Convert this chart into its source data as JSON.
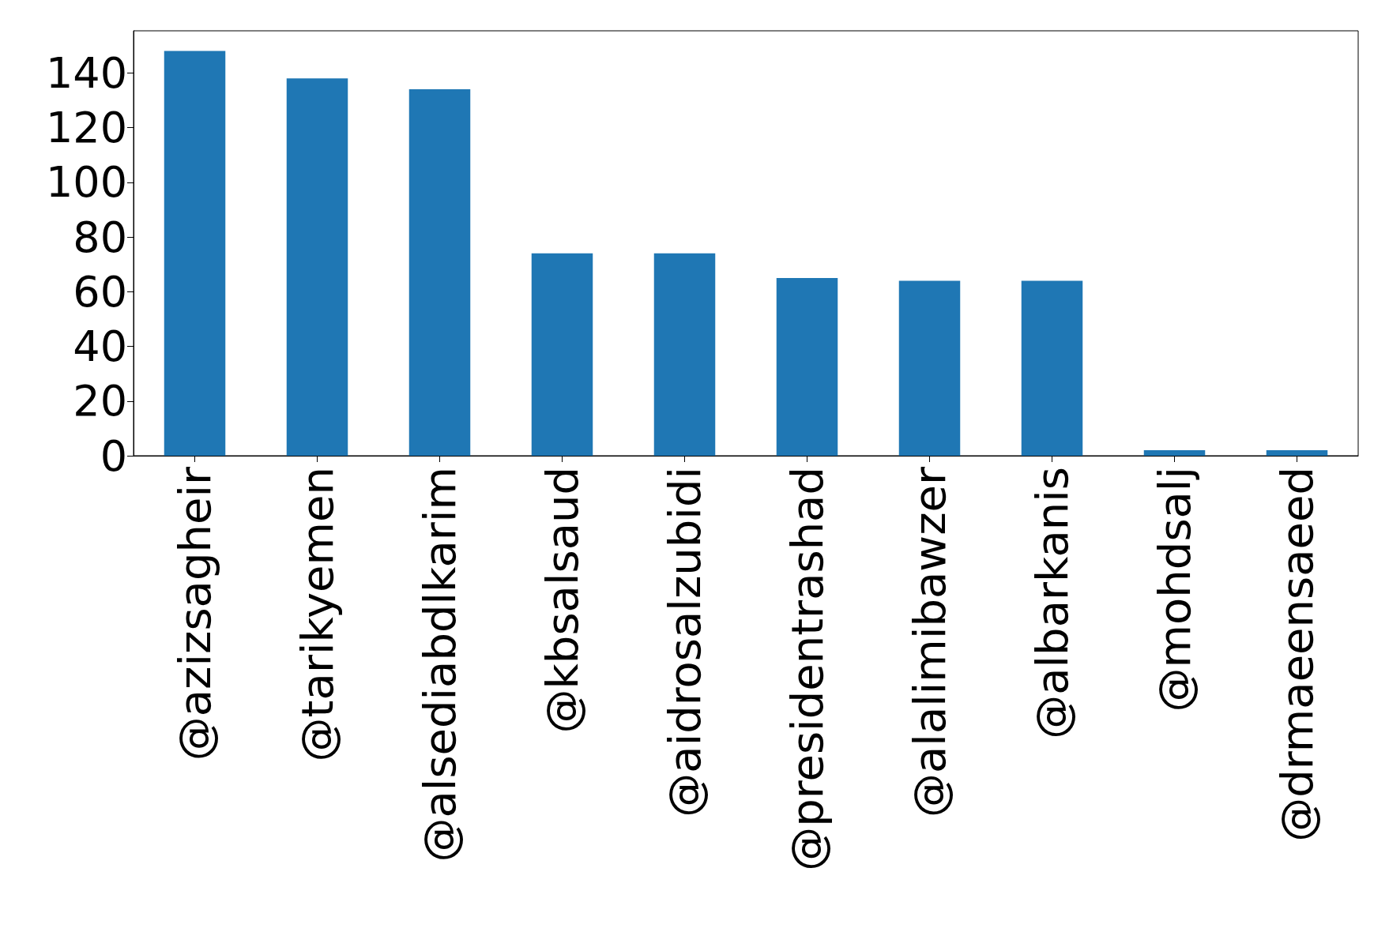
{
  "chart_data": {
    "type": "bar",
    "categories": [
      "@azizsagheir",
      "@tarikyemen",
      "@alsediabdlkarim",
      "@kbsalsaud",
      "@aidrosalzubidi",
      "@presidentrashad",
      "@alalimibawzer",
      "@albarkanis",
      "@mohdsalj",
      "@drmaeensaeed"
    ],
    "values": [
      148,
      138,
      134,
      74,
      74,
      65,
      64,
      64,
      2,
      2
    ],
    "color": "#1f77b4",
    "ylim": [
      0,
      155.4
    ],
    "yticks": [
      0,
      20,
      40,
      60,
      80,
      100,
      120,
      140
    ],
    "grid": false
  }
}
